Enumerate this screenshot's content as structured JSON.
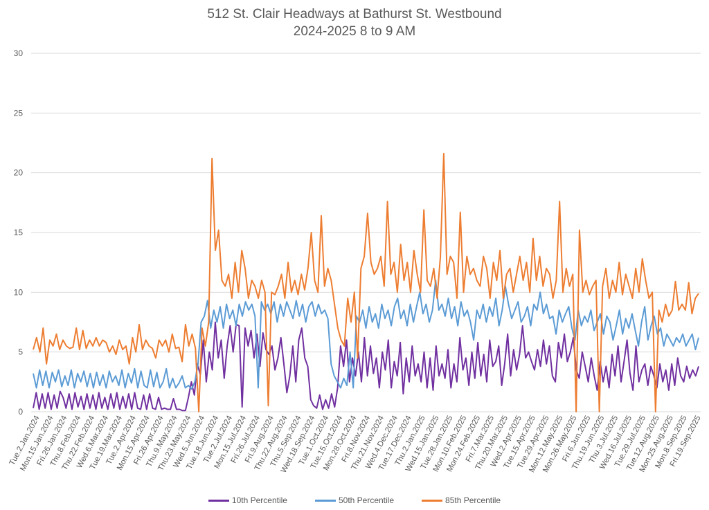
{
  "chart_data": {
    "type": "line",
    "title": "512 St. Clair Headways at Bathurst St. Westbound",
    "subtitle": "2024-2025 8 to 9 AM",
    "xlabel": "",
    "ylabel": "",
    "ylim": [
      0,
      30
    ],
    "yticks": [
      0,
      5,
      10,
      15,
      20,
      25,
      30
    ],
    "grid": true,
    "legend_position": "bottom",
    "x_tick_labels": [
      "Tue.2.Jan.2024",
      "Mon.15.Jan.2024",
      "Fri.26.Jan.2024",
      "Thu.8.Feb.2024",
      "Thu.22.Feb.2024",
      "Wed.6.Mar.2024",
      "Tue.19.Mar.2024",
      "Tue.2.Apr.2024",
      "Mon.15.Apr.2024",
      "Fri.26.Apr.2024",
      "Thu.9.May.2024",
      "Thu.23.May.2024",
      "Wed.5.Jun.2024",
      "Tue.18.Jun.2024",
      "Tue.2.Jul.2024",
      "Mon.15.Jul.2024",
      "Fri.26.Jul.2024",
      "Fri.9.Aug.2024",
      "Thu.22.Aug.2024",
      "Thu.5.Sep.2024",
      "Wed.18.Sep.2024",
      "Tue.1.Oct.2024",
      "Tue.15.Oct.2024",
      "Mon.28.Oct.2024",
      "Fri.8.Nov.2024",
      "Thu.21.Nov.2024",
      "Wed.4.Dec.2024",
      "Tue.17.Dec.2024",
      "Thu.2.Jan.2025",
      "Wed.15.Jan.2025",
      "Tue.28.Jan.2025",
      "Mon.10.Feb.2025",
      "Mon.24.Feb.2025",
      "Fri.7.Mar.2025",
      "Thu.20.Mar.2025",
      "Wed.2.Apr.2025",
      "Tue.15.Apr.2025",
      "Tue.29.Apr.2025",
      "Mon.12.May.2025",
      "Mon.26.May.2025",
      "Fri.6.Jun.2025",
      "Thu.19.Jun.2025",
      "Thu.3.Jul.2025",
      "Wed.16.Jul.2025",
      "Tue.29.Jul.2025",
      "Tue.12.Aug.2025",
      "Mon.25.Aug.2025",
      "Mon.8.Sep.2025",
      "Fri.19.Sep.2025"
    ],
    "series": [
      {
        "name": "10th Percentile",
        "color": "#7030a0",
        "values": [
          0.3,
          1.6,
          0.2,
          1.5,
          0.3,
          1.6,
          0.2,
          1.4,
          0.3,
          1.7,
          1.2,
          0.3,
          1.5,
          0.2,
          1.6,
          0.4,
          1.3,
          0.2,
          1.5,
          0.3,
          1.4,
          0.2,
          1.6,
          0.3,
          1.2,
          0.2,
          1.5,
          0.3,
          1.6,
          0.2,
          1.3,
          0.3,
          1.5,
          0.2,
          1.6,
          0.3,
          0.2,
          1.4,
          0.2,
          1.5,
          0.3,
          0.2,
          1.2,
          0.2,
          0.3,
          0.2,
          0.2,
          1.1,
          0.2,
          0.2,
          0.1,
          0.1,
          1.2,
          2.5,
          1.4,
          4.0,
          3.1,
          6.0,
          2.5,
          5.0,
          3.5,
          7.5,
          4.5,
          6.0,
          2.8,
          5.5,
          7.2,
          5.0,
          7.3,
          7.2,
          0.4,
          7.0,
          5.5,
          6.8,
          4.5,
          6.5,
          3.8,
          6.6,
          5.2,
          4.8,
          5.5,
          3.5,
          4.5,
          6.2,
          4.0,
          1.6,
          3.0,
          5.5,
          2.5,
          6.0,
          7.0,
          4.5,
          3.8,
          1.0,
          0.5,
          0.3,
          1.4,
          0.2,
          1.0,
          0.3,
          1.5,
          0.4,
          2.0,
          5.5,
          3.8,
          6.0,
          2.5,
          4.5,
          3.0,
          5.0,
          2.5,
          6.2,
          3.0,
          5.5,
          3.2,
          4.5,
          2.0,
          5.0,
          3.5,
          6.0,
          2.0,
          4.2,
          3.0,
          5.8,
          1.5,
          4.5,
          2.5,
          5.5,
          3.0,
          4.0,
          2.5,
          5.0,
          2.0,
          4.5,
          1.8,
          5.5,
          3.0,
          4.0,
          2.8,
          5.2,
          2.0,
          4.0,
          2.5,
          6.2,
          3.5,
          4.5,
          2.2,
          5.0,
          2.8,
          5.8,
          3.0,
          4.8,
          2.5,
          6.0,
          3.8,
          4.2,
          5.5,
          2.2,
          4.0,
          6.5,
          3.0,
          5.2,
          3.5,
          4.8,
          7.2,
          4.5,
          5.0,
          4.2,
          3.5,
          5.2,
          3.8,
          6.0,
          4.0,
          5.5,
          3.0,
          2.5,
          5.8,
          4.5,
          6.5,
          4.2,
          5.0,
          6.2,
          3.5,
          2.8,
          5.0,
          3.8,
          2.5,
          4.5,
          3.0,
          1.8,
          4.2,
          2.5,
          3.8,
          2.0,
          4.8,
          3.0,
          5.5,
          2.5,
          4.2,
          6.0,
          3.2,
          1.8,
          5.5,
          2.5,
          3.5,
          4.0,
          2.2,
          3.8,
          3.0,
          2.0,
          4.0,
          2.5,
          3.5,
          1.8,
          4.0,
          2.2,
          4.5,
          3.0,
          2.5,
          3.8,
          2.8,
          3.5,
          3.0,
          3.8
        ]
      },
      {
        "name": "50th Percentile",
        "color": "#5b9bd5",
        "values": [
          3.2,
          2.0,
          3.5,
          2.2,
          3.4,
          2.0,
          3.3,
          2.5,
          3.5,
          2.1,
          3.0,
          2.2,
          3.5,
          2.0,
          3.2,
          2.5,
          3.4,
          2.1,
          3.2,
          2.0,
          3.3,
          2.2,
          3.1,
          2.0,
          3.4,
          2.5,
          3.0,
          2.2,
          3.5,
          2.0,
          3.2,
          2.4,
          3.6,
          2.0,
          3.4,
          2.2,
          2.0,
          3.5,
          2.1,
          3.3,
          2.0,
          2.5,
          3.6,
          2.0,
          2.8,
          2.0,
          2.4,
          3.0,
          2.0,
          2.2,
          1.9,
          2.5,
          4.0,
          7.5,
          8.0,
          9.3,
          7.0,
          8.5,
          7.5,
          8.8,
          7.0,
          9.0,
          7.8,
          8.5,
          7.2,
          9.0,
          8.0,
          9.2,
          8.5,
          9.0,
          8.0,
          2.0,
          9.2,
          8.5,
          9.0,
          8.2,
          9.2,
          7.5,
          9.0,
          8.0,
          9.2,
          8.5,
          7.8,
          9.3,
          8.0,
          9.0,
          7.5,
          8.8,
          9.2,
          8.0,
          9.0,
          8.2,
          8.5,
          7.8,
          4.0,
          3.0,
          2.5,
          2.0,
          2.8,
          2.2,
          5.0,
          2.0,
          8.0,
          7.5,
          8.5,
          7.0,
          8.8,
          7.5,
          8.2,
          7.0,
          9.0,
          7.8,
          8.5,
          7.2,
          8.8,
          9.5,
          7.8,
          8.5,
          7.2,
          9.0,
          7.5,
          8.8,
          10.0,
          8.2,
          9.0,
          7.5,
          8.5,
          11.0,
          8.5,
          9.0,
          8.0,
          9.5,
          7.8,
          8.8,
          7.2,
          9.2,
          8.0,
          8.5,
          7.5,
          6.0,
          8.5,
          7.8,
          9.0,
          7.5,
          8.8,
          8.0,
          9.5,
          7.2,
          8.5,
          10.5,
          9.0,
          7.8,
          8.5,
          9.2,
          7.5,
          8.0,
          8.8,
          7.2,
          9.0,
          8.5,
          10.0,
          8.2,
          9.0,
          7.8,
          8.0,
          6.5,
          8.5,
          7.5,
          8.2,
          8.8,
          7.0,
          6.0,
          8.5,
          7.2,
          8.0,
          7.5,
          8.5,
          6.8,
          7.5,
          8.2,
          6.5,
          8.0,
          7.5,
          6.0,
          7.2,
          8.5,
          6.5,
          7.8,
          7.0,
          8.2,
          6.8,
          5.5,
          7.5,
          8.8,
          6.0,
          7.2,
          8.0,
          6.5,
          7.0,
          5.5,
          6.5,
          6.0,
          5.5,
          6.2,
          5.8,
          6.5,
          5.5,
          6.0,
          6.5,
          5.2,
          6.2
        ]
      },
      {
        "name": "85th Percentile",
        "color": "#ed7d31",
        "values": [
          5.2,
          6.2,
          5.0,
          7.0,
          4.0,
          6.0,
          5.5,
          6.5,
          5.2,
          6.0,
          5.5,
          5.3,
          5.4,
          7.0,
          5.2,
          6.8,
          5.3,
          6.0,
          5.5,
          6.2,
          5.5,
          6.0,
          5.8,
          5.0,
          5.5,
          4.8,
          6.0,
          5.2,
          5.5,
          4.0,
          6.2,
          5.0,
          7.3,
          5.2,
          6.0,
          5.5,
          5.3,
          4.5,
          6.0,
          5.5,
          6.0,
          5.0,
          6.5,
          5.3,
          5.4,
          4.2,
          7.3,
          5.5,
          6.5,
          5.3,
          0.0,
          7.0,
          5.5,
          7.5,
          21.2,
          13.5,
          15.2,
          11.0,
          10.5,
          11.5,
          9.5,
          12.5,
          10.0,
          13.5,
          12.0,
          9.5,
          11.0,
          10.5,
          9.5,
          11.0,
          10.0,
          0.5,
          10.0,
          9.8,
          10.5,
          11.5,
          9.5,
          12.5,
          10.0,
          11.0,
          9.8,
          11.5,
          10.2,
          12.0,
          15.0,
          11.0,
          10.0,
          16.4,
          10.5,
          12.0,
          11.0,
          9.0,
          7.0,
          6.0,
          5.5,
          9.5,
          7.5,
          10.0,
          4.5,
          12.0,
          13.0,
          16.6,
          12.5,
          11.5,
          12.0,
          13.0,
          10.5,
          17.6,
          11.5,
          12.5,
          10.0,
          14.0,
          11.0,
          12.5,
          10.0,
          13.5,
          11.5,
          10.0,
          16.9,
          11.0,
          10.5,
          12.0,
          9.5,
          13.0,
          21.6,
          11.5,
          13.0,
          12.5,
          9.5,
          16.7,
          10.0,
          13.0,
          11.5,
          12.0,
          11.0,
          10.5,
          13.0,
          12.0,
          9.5,
          12.5,
          11.0,
          13.5,
          9.5,
          11.5,
          12.0,
          10.0,
          11.5,
          13.0,
          11.0,
          12.5,
          10.0,
          14.5,
          11.0,
          13.0,
          10.5,
          12.0,
          11.5,
          9.5,
          11.0,
          17.6,
          10.0,
          12.0,
          10.5,
          11.5,
          0.0,
          15.2,
          10.0,
          11.0,
          9.8,
          10.5,
          11.0,
          0.0,
          10.5,
          12.0,
          9.5,
          11.0,
          10.0,
          12.5,
          9.8,
          11.5,
          10.5,
          9.5,
          12.0,
          10.0,
          12.8,
          11.0,
          9.5,
          10.0,
          0.0,
          8.5,
          7.5,
          9.0,
          8.0,
          8.5,
          10.9,
          8.5,
          9.0,
          8.5,
          10.8,
          8.2,
          9.5,
          9.9
        ]
      }
    ]
  }
}
